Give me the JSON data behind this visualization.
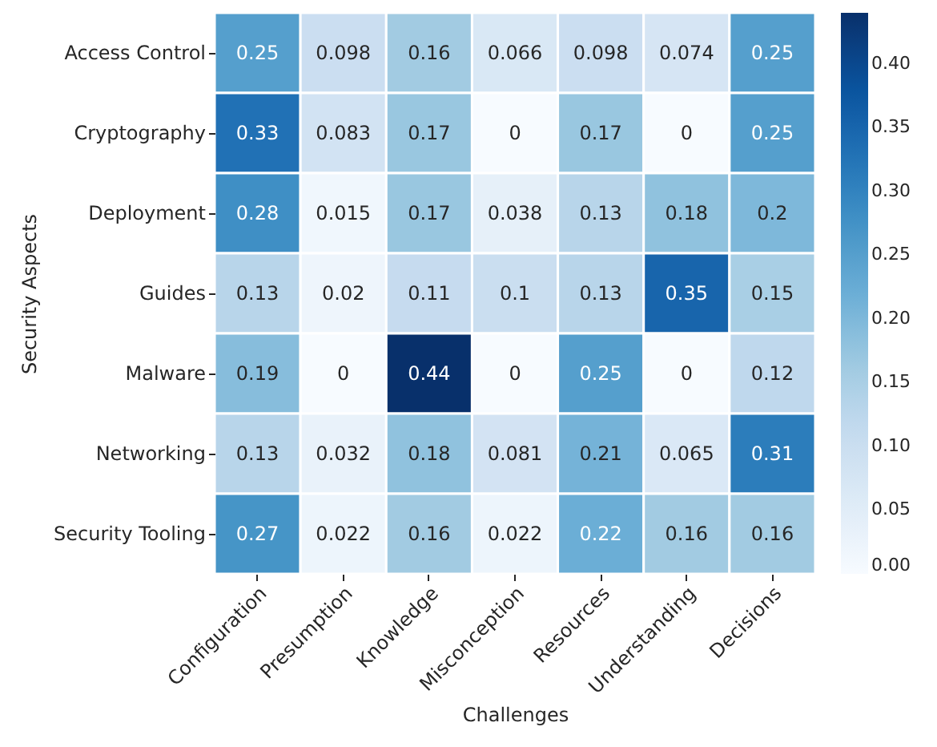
{
  "chart_data": {
    "type": "heatmap",
    "xlabel": "Challenges",
    "ylabel": "Security Aspects",
    "categories": [
      "Configuration",
      "Presumption",
      "Knowledge",
      "Misconception",
      "Resources",
      "Understanding",
      "Decisions"
    ],
    "y_categories": [
      "Access Control",
      "Cryptography",
      "Deployment",
      "Guides",
      "Malware",
      "Networking",
      "Security Tooling"
    ],
    "cells": [
      [
        0.25,
        0.098,
        0.16,
        0.066,
        0.098,
        0.074,
        0.25
      ],
      [
        0.33,
        0.083,
        0.17,
        0,
        0.17,
        0,
        0.25
      ],
      [
        0.28,
        0.015,
        0.17,
        0.038,
        0.13,
        0.18,
        0.2
      ],
      [
        0.13,
        0.02,
        0.11,
        0.1,
        0.13,
        0.35,
        0.15
      ],
      [
        0.19,
        0,
        0.44,
        0,
        0.25,
        0,
        0.12
      ],
      [
        0.13,
        0.032,
        0.18,
        0.081,
        0.21,
        0.065,
        0.31
      ],
      [
        0.27,
        0.022,
        0.16,
        0.022,
        0.22,
        0.16,
        0.16
      ]
    ],
    "data_labels": true,
    "clim": [
      0,
      0.44
    ],
    "cticks": [
      {
        "value": 0,
        "label": "0.00"
      },
      {
        "value": 0.05,
        "label": "0.05"
      },
      {
        "value": 0.1,
        "label": "0.10"
      },
      {
        "value": 0.15,
        "label": "0.15"
      },
      {
        "value": 0.2,
        "label": "0.20"
      },
      {
        "value": 0.25,
        "label": "0.25"
      },
      {
        "value": 0.3,
        "label": "0.30"
      },
      {
        "value": 0.35,
        "label": "0.35"
      },
      {
        "value": 0.4,
        "label": "0.40"
      }
    ]
  }
}
